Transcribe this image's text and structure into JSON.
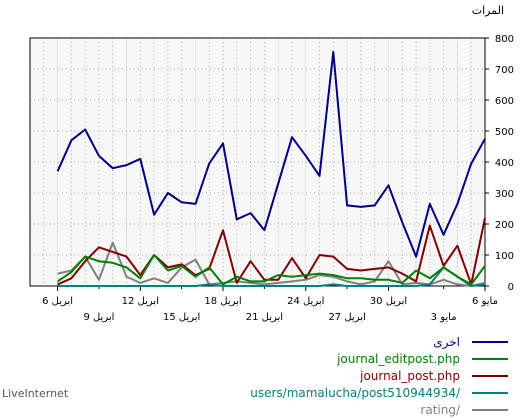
{
  "chart_data": {
    "type": "line",
    "ylabel": "المرات",
    "ylim": [
      0,
      800
    ],
    "yticks": [
      "0",
      "100",
      "200",
      "300",
      "400",
      "500",
      "600",
      "700",
      "800"
    ],
    "xlim": [
      0,
      33
    ],
    "grid": true,
    "legend_position": "bottom-right",
    "x_tick_labels_top": [
      {
        "x": 0,
        "label": "6 مايو"
      },
      {
        "x": 7,
        "label": "30 ابريل"
      },
      {
        "x": 13,
        "label": "24 ابريل"
      },
      {
        "x": 19,
        "label": "18 ابريل"
      },
      {
        "x": 25,
        "label": "12 ابريل"
      },
      {
        "x": 31,
        "label": "6 ابريل"
      }
    ],
    "x_tick_labels_bottom": [
      {
        "x": 3,
        "label": "3 مايو"
      },
      {
        "x": 10,
        "label": "27 ابريل"
      },
      {
        "x": 16,
        "label": "21 ابريل"
      },
      {
        "x": 22,
        "label": "15 ابريل"
      },
      {
        "x": 28,
        "label": "9 ابريل"
      }
    ],
    "x": [
      0,
      1,
      2,
      3,
      4,
      5,
      6,
      7,
      8,
      9,
      10,
      11,
      12,
      13,
      14,
      15,
      16,
      17,
      18,
      19,
      20,
      21,
      22,
      23,
      24,
      25,
      26,
      27,
      28,
      29,
      30,
      31
    ],
    "series": [
      {
        "name": "اخرى",
        "color": "#000080",
        "values": [
          475,
          395,
          265,
          165,
          265,
          95,
          205,
          325,
          260,
          255,
          260,
          755,
          355,
          420,
          480,
          330,
          180,
          235,
          215,
          460,
          395,
          265,
          270,
          300,
          230,
          410,
          390,
          380,
          420,
          505,
          470,
          370
        ]
      },
      {
        "name": "journal_editpost.php",
        "color": "#008000",
        "values": [
          65,
          5,
          30,
          60,
          25,
          50,
          10,
          20,
          20,
          25,
          25,
          35,
          40,
          35,
          30,
          35,
          15,
          15,
          30,
          5,
          60,
          30,
          65,
          50,
          100,
          25,
          60,
          75,
          80,
          95,
          45,
          15
        ]
      },
      {
        "name": "journal_post.php",
        "color": "#800000",
        "values": [
          220,
          5,
          130,
          65,
          195,
          15,
          40,
          60,
          55,
          50,
          55,
          95,
          100,
          25,
          90,
          20,
          20,
          80,
          10,
          180,
          55,
          35,
          70,
          60,
          100,
          35,
          95,
          110,
          125,
          80,
          25,
          5
        ]
      },
      {
        "name": "users/mamalucha/post510944934/",
        "color": "#008080",
        "values": [
          5,
          0,
          30,
          60,
          5,
          0,
          0,
          0,
          0,
          0,
          0,
          5,
          0,
          0,
          0,
          0,
          0,
          0,
          0,
          0,
          5,
          0,
          0,
          0,
          0,
          0,
          0,
          0,
          0,
          0,
          0,
          0
        ]
      },
      {
        "name": "rating/",
        "color": "#808080",
        "values": [
          10,
          0,
          5,
          20,
          5,
          10,
          5,
          80,
          15,
          5,
          15,
          30,
          35,
          20,
          15,
          10,
          5,
          10,
          15,
          10,
          5,
          85,
          60,
          10,
          25,
          10,
          30,
          140,
          20,
          95,
          50,
          40
        ]
      }
    ]
  },
  "brand": "LiveInternet"
}
